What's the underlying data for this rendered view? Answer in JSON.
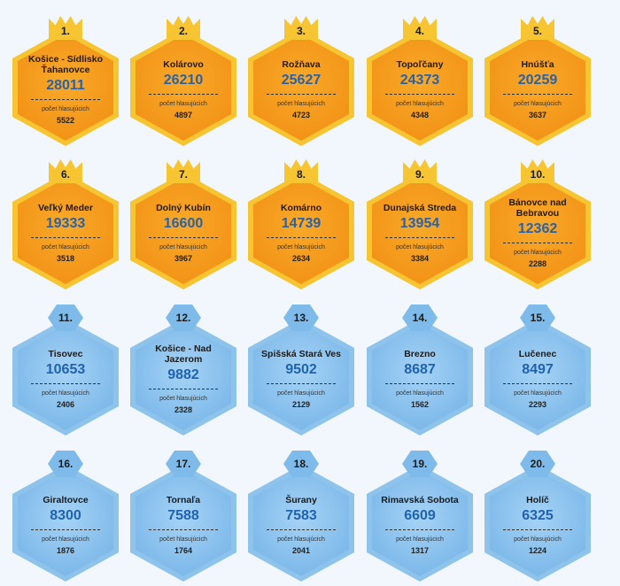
{
  "label": "počet hlasujúcich",
  "items": [
    {
      "rank": "1.",
      "name": "Košice - Sídlisko Ťahanovce",
      "score": "28011",
      "voters": "5522"
    },
    {
      "rank": "2.",
      "name": "Kolárovo",
      "score": "26210",
      "voters": "4897"
    },
    {
      "rank": "3.",
      "name": "Rožňava",
      "score": "25627",
      "voters": "4723"
    },
    {
      "rank": "4.",
      "name": "Topoľčany",
      "score": "24373",
      "voters": "4348"
    },
    {
      "rank": "5.",
      "name": "Hnúšťa",
      "score": "20259",
      "voters": "3637"
    },
    {
      "rank": "6.",
      "name": "Veľký Meder",
      "score": "19333",
      "voters": "3518"
    },
    {
      "rank": "7.",
      "name": "Dolný Kubín",
      "score": "16600",
      "voters": "3967"
    },
    {
      "rank": "8.",
      "name": "Komárno",
      "score": "14739",
      "voters": "2634"
    },
    {
      "rank": "9.",
      "name": "Dunajská Streda",
      "score": "13954",
      "voters": "3384"
    },
    {
      "rank": "10.",
      "name": "Bánovce nad Bebravou",
      "score": "12362",
      "voters": "2288"
    },
    {
      "rank": "11.",
      "name": "Tisovec",
      "score": "10653",
      "voters": "2406"
    },
    {
      "rank": "12.",
      "name": "Košice - Nad Jazerom",
      "score": "9882",
      "voters": "2328"
    },
    {
      "rank": "13.",
      "name": "Spišská Stará Ves",
      "score": "9502",
      "voters": "2129"
    },
    {
      "rank": "14.",
      "name": "Brezno",
      "score": "8687",
      "voters": "1562"
    },
    {
      "rank": "15.",
      "name": "Lučenec",
      "score": "8497",
      "voters": "2293"
    },
    {
      "rank": "16.",
      "name": "Giraltovce",
      "score": "8300",
      "voters": "1876"
    },
    {
      "rank": "17.",
      "name": "Tornaľa",
      "score": "7588",
      "voters": "1764"
    },
    {
      "rank": "18.",
      "name": "Šurany",
      "score": "7583",
      "voters": "2041"
    },
    {
      "rank": "19.",
      "name": "Rimavská Sobota",
      "score": "6609",
      "voters": "1317"
    },
    {
      "rank": "20.",
      "name": "Holíč",
      "score": "6325",
      "voters": "1224"
    }
  ]
}
